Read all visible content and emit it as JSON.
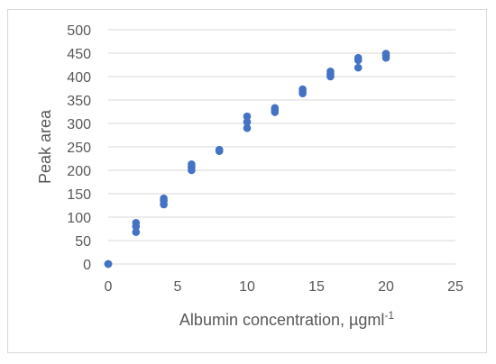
{
  "chart_data": {
    "type": "scatter",
    "title": "",
    "xlabel": "Albumin concentration, µgml",
    "xlabel_superscript": "-1",
    "ylabel": "Peak area",
    "xlim": [
      0,
      25
    ],
    "ylim": [
      0,
      500
    ],
    "x_ticks": [
      "0",
      "5",
      "10",
      "15",
      "20",
      "25"
    ],
    "y_ticks": [
      "0",
      "50",
      "100",
      "150",
      "200",
      "250",
      "300",
      "350",
      "400",
      "450",
      "500"
    ],
    "grid": "horizontal",
    "legend": "none",
    "marker_color": "#4472c4",
    "series": [
      {
        "points": [
          [
            0,
            0
          ],
          [
            0,
            0
          ],
          [
            0,
            0
          ],
          [
            2,
            68
          ],
          [
            2,
            80
          ],
          [
            2,
            88
          ],
          [
            4,
            127
          ],
          [
            4,
            135
          ],
          [
            4,
            140
          ],
          [
            6,
            200
          ],
          [
            6,
            207
          ],
          [
            6,
            213
          ],
          [
            8,
            241
          ],
          [
            8,
            243
          ],
          [
            8,
            244
          ],
          [
            10,
            290
          ],
          [
            10,
            303
          ],
          [
            10,
            315
          ],
          [
            12,
            324
          ],
          [
            12,
            328
          ],
          [
            12,
            333
          ],
          [
            14,
            364
          ],
          [
            14,
            369
          ],
          [
            14,
            373
          ],
          [
            16,
            400
          ],
          [
            16,
            405
          ],
          [
            16,
            411
          ],
          [
            18,
            419
          ],
          [
            18,
            435
          ],
          [
            18,
            440
          ],
          [
            20,
            440
          ],
          [
            20,
            445
          ],
          [
            20,
            449
          ]
        ]
      }
    ]
  }
}
